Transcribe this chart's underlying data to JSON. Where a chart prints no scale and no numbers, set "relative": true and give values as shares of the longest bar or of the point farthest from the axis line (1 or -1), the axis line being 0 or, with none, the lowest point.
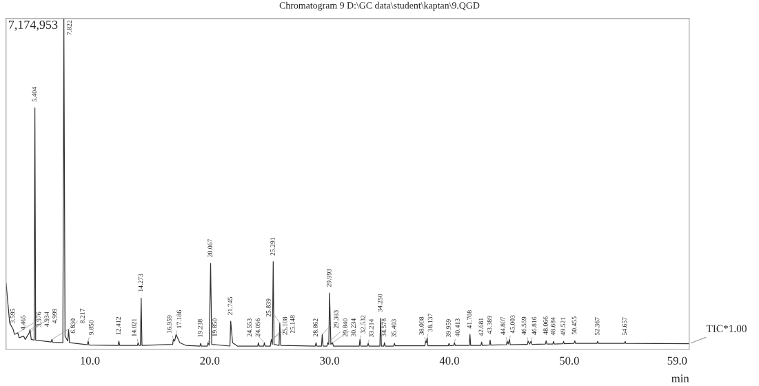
{
  "chart_data": {
    "type": "line",
    "title": "Chromatogram 9 D:\\GC data\\student\\kaptan\\9.QGD",
    "xlabel": "min",
    "relative": true,
    "xlim": [
      3.0,
      60.0
    ],
    "xticks": [
      {
        "value": 10,
        "label": "10.0"
      },
      {
        "value": 20,
        "label": "20.0"
      },
      {
        "value": 30,
        "label": "30.0"
      },
      {
        "value": 40,
        "label": "40.0"
      },
      {
        "value": 50,
        "label": "50.0"
      },
      {
        "value": 59,
        "label": "59.0"
      }
    ],
    "grid": false,
    "marker": "none",
    "line_style": "solid",
    "series": [
      {
        "name": "TIC*1.00",
        "color": "#333333",
        "x": [
          3.0,
          3.3,
          3.595,
          3.7,
          3.976,
          4.1,
          4.465,
          4.6,
          4.934,
          4.999,
          5.1,
          5.34,
          5.404,
          5.47,
          6.75,
          6.83,
          6.9,
          7.74,
          7.822,
          7.92,
          8.15,
          8.217,
          8.3,
          9.78,
          9.85,
          9.92,
          12.35,
          12.412,
          12.48,
          13.96,
          14.021,
          14.08,
          14.21,
          14.273,
          14.34,
          16.9,
          16.959,
          17.07,
          17.186,
          17.5,
          18.0,
          19.18,
          19.238,
          19.3,
          19.79,
          19.85,
          19.95,
          20.067,
          20.16,
          21.68,
          21.745,
          21.9,
          22.3,
          24.0,
          24.056,
          24.12,
          24.5,
          24.553,
          24.62,
          25.05,
          25.108,
          25.148,
          25.22,
          25.291,
          25.36,
          25.78,
          25.839,
          25.92,
          28.8,
          28.862,
          28.93,
          29.32,
          29.383,
          29.45,
          29.78,
          29.84,
          29.93,
          29.993,
          30.1,
          30.234,
          30.32,
          32.47,
          32.532,
          32.6,
          33.15,
          33.214,
          33.28,
          34.19,
          34.25,
          34.32,
          34.52,
          34.578,
          34.64,
          35.34,
          35.403,
          35.47,
          37.95,
          38.008,
          38.07,
          38.137,
          38.2,
          39.9,
          39.959,
          40.02,
          40.35,
          40.413,
          40.48,
          41.65,
          41.708,
          41.77,
          42.62,
          42.681,
          42.74,
          43.33,
          43.389,
          43.45,
          44.75,
          44.807,
          44.9,
          45.003,
          45.07,
          46.5,
          46.559,
          46.68,
          46.816,
          46.88,
          48.0,
          48.066,
          48.13,
          48.62,
          48.684,
          48.75,
          49.46,
          49.521,
          49.58,
          50.39,
          50.455,
          50.52,
          52.3,
          52.367,
          52.43,
          54.6,
          54.657,
          54.72,
          60.0
        ],
        "values": [
          0.2,
          0.08,
          0.06,
          0.045,
          0.05,
          0.035,
          0.04,
          0.03,
          0.05,
          0.06,
          0.03,
          0.028,
          0.73,
          0.028,
          0.022,
          0.03,
          0.021,
          0.02,
          1.0,
          0.04,
          0.025,
          0.06,
          0.02,
          0.014,
          0.025,
          0.013,
          0.012,
          0.025,
          0.012,
          0.012,
          0.02,
          0.012,
          0.012,
          0.155,
          0.012,
          0.015,
          0.03,
          0.025,
          0.045,
          0.02,
          0.012,
          0.01,
          0.018,
          0.01,
          0.01,
          0.02,
          0.012,
          0.26,
          0.015,
          0.01,
          0.085,
          0.02,
          0.01,
          0.01,
          0.02,
          0.01,
          0.01,
          0.02,
          0.01,
          0.01,
          0.025,
          0.03,
          0.015,
          0.265,
          0.015,
          0.012,
          0.08,
          0.012,
          0.01,
          0.02,
          0.01,
          0.01,
          0.045,
          0.01,
          0.01,
          0.02,
          0.015,
          0.17,
          0.015,
          0.02,
          0.01,
          0.01,
          0.03,
          0.01,
          0.01,
          0.018,
          0.01,
          0.01,
          0.094,
          0.01,
          0.01,
          0.02,
          0.01,
          0.01,
          0.018,
          0.011,
          0.011,
          0.025,
          0.02,
          0.035,
          0.011,
          0.011,
          0.018,
          0.011,
          0.012,
          0.02,
          0.012,
          0.012,
          0.045,
          0.012,
          0.012,
          0.022,
          0.012,
          0.013,
          0.028,
          0.013,
          0.014,
          0.025,
          0.016,
          0.03,
          0.014,
          0.015,
          0.025,
          0.016,
          0.025,
          0.015,
          0.016,
          0.026,
          0.016,
          0.016,
          0.024,
          0.016,
          0.017,
          0.024,
          0.017,
          0.018,
          0.026,
          0.018,
          0.018,
          0.024,
          0.018,
          0.018,
          0.024,
          0.018,
          0.017
        ]
      }
    ],
    "annotations": [
      "7,174,953",
      {
        "text": "3.595",
        "x": 3.595,
        "y": 0.06
      },
      {
        "text": "3.976",
        "x": 3.976,
        "y": 0.05
      },
      {
        "text": "4.465",
        "x": 4.465,
        "y": 0.04
      },
      {
        "text": "4.934",
        "x": 4.934,
        "y": 0.05
      },
      {
        "text": "4.999",
        "x": 4.999,
        "y": 0.06
      },
      {
        "text": "5.404",
        "x": 5.404,
        "y": 0.73
      },
      {
        "text": "6.830",
        "x": 6.83,
        "y": 0.03
      },
      {
        "text": "7.822",
        "x": 7.822,
        "y": 1.0
      },
      {
        "text": "8.217",
        "x": 8.217,
        "y": 0.06
      },
      {
        "text": "9.850",
        "x": 9.85,
        "y": 0.025
      },
      {
        "text": "12.412",
        "x": 12.412,
        "y": 0.025
      },
      {
        "text": "14.021",
        "x": 14.021,
        "y": 0.02
      },
      {
        "text": "14.273",
        "x": 14.273,
        "y": 0.155
      },
      {
        "text": "16.959",
        "x": 16.959,
        "y": 0.03
      },
      {
        "text": "17.186",
        "x": 17.186,
        "y": 0.045
      },
      {
        "text": "19.238",
        "x": 19.238,
        "y": 0.018
      },
      {
        "text": "19.850",
        "x": 19.85,
        "y": 0.02
      },
      {
        "text": "20.067",
        "x": 20.067,
        "y": 0.26
      },
      {
        "text": "21.745",
        "x": 21.745,
        "y": 0.085
      },
      {
        "text": "24.056",
        "x": 24.056,
        "y": 0.02
      },
      {
        "text": "24.553",
        "x": 24.553,
        "y": 0.02
      },
      {
        "text": "25.108",
        "x": 25.108,
        "y": 0.025
      },
      {
        "text": "25.148",
        "x": 25.148,
        "y": 0.03
      },
      {
        "text": "25.291",
        "x": 25.291,
        "y": 0.265
      },
      {
        "text": "25.839",
        "x": 25.839,
        "y": 0.08
      },
      {
        "text": "28.862",
        "x": 28.862,
        "y": 0.02
      },
      {
        "text": "29.383",
        "x": 29.383,
        "y": 0.045
      },
      {
        "text": "29.840",
        "x": 29.84,
        "y": 0.02
      },
      {
        "text": "29.993",
        "x": 29.993,
        "y": 0.17
      },
      {
        "text": "30.234",
        "x": 30.234,
        "y": 0.02
      },
      {
        "text": "32.532",
        "x": 32.532,
        "y": 0.03
      },
      {
        "text": "33.214",
        "x": 33.214,
        "y": 0.018
      },
      {
        "text": "34.250",
        "x": 34.25,
        "y": 0.094
      },
      {
        "text": "34.578",
        "x": 34.578,
        "y": 0.02
      },
      {
        "text": "35.403",
        "x": 35.403,
        "y": 0.018
      },
      {
        "text": "38.008",
        "x": 38.008,
        "y": 0.025
      },
      {
        "text": "38.137",
        "x": 38.137,
        "y": 0.035
      },
      {
        "text": "39.959",
        "x": 39.959,
        "y": 0.018
      },
      {
        "text": "40.413",
        "x": 40.413,
        "y": 0.02
      },
      {
        "text": "41.708",
        "x": 41.708,
        "y": 0.045
      },
      {
        "text": "42.681",
        "x": 42.681,
        "y": 0.022
      },
      {
        "text": "43.389",
        "x": 43.389,
        "y": 0.028
      },
      {
        "text": "44.807",
        "x": 44.807,
        "y": 0.025
      },
      {
        "text": "45.003",
        "x": 45.003,
        "y": 0.03
      },
      {
        "text": "46.559",
        "x": 46.559,
        "y": 0.025
      },
      {
        "text": "46.816",
        "x": 46.816,
        "y": 0.025
      },
      {
        "text": "48.066",
        "x": 48.066,
        "y": 0.026
      },
      {
        "text": "48.684",
        "x": 48.684,
        "y": 0.024
      },
      {
        "text": "49.521",
        "x": 49.521,
        "y": 0.024
      },
      {
        "text": "50.455",
        "x": 50.455,
        "y": 0.026
      },
      {
        "text": "52.367",
        "x": 52.367,
        "y": 0.024
      },
      {
        "text": "54.657",
        "x": 54.657,
        "y": 0.024
      }
    ]
  }
}
